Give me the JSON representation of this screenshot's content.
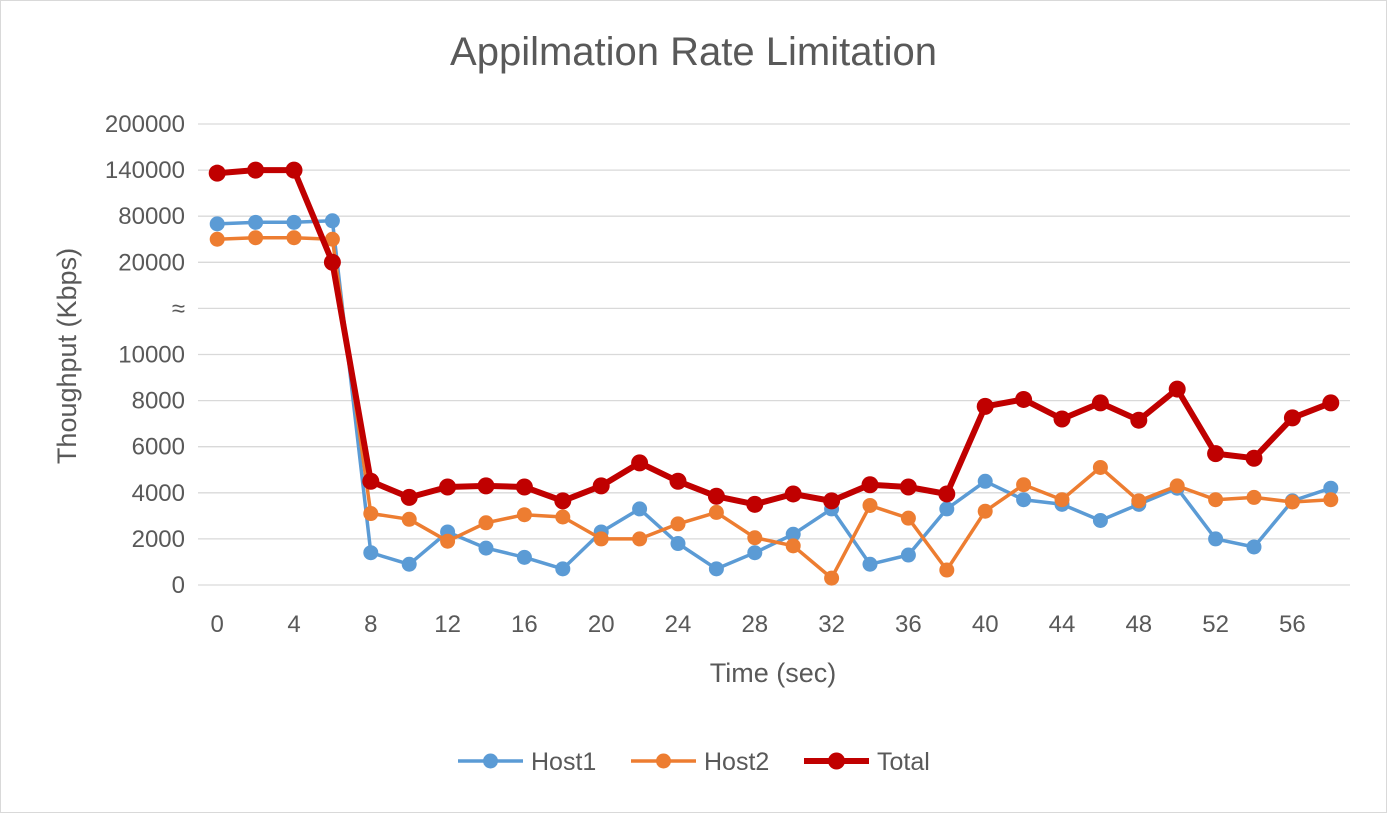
{
  "chart_data": {
    "type": "line",
    "title": "Appilmation Rate Limitation",
    "xlabel": "Time (sec)",
    "ylabel": "Thoughput (Kbps)",
    "x": [
      0,
      2,
      4,
      6,
      8,
      10,
      12,
      14,
      16,
      18,
      20,
      22,
      24,
      26,
      28,
      30,
      32,
      34,
      36,
      38,
      40,
      42,
      44,
      46,
      48,
      50,
      52,
      54,
      56,
      58
    ],
    "x_tick_labels": [
      "0",
      "4",
      "8",
      "12",
      "16",
      "20",
      "24",
      "28",
      "32",
      "36",
      "40",
      "44",
      "48",
      "52",
      "56"
    ],
    "y_tick_labels": [
      "0",
      "2000",
      "4000",
      "6000",
      "8000",
      "10000",
      "≈",
      "20000",
      "80000",
      "140000",
      "200000"
    ],
    "y_axis_break": "≈",
    "y_scale": "broken",
    "grid": "horizontal",
    "legend_position": "bottom",
    "series": [
      {
        "name": "Host1",
        "color": "#5b9bd5",
        "values": [
          70000,
          72000,
          72000,
          74000,
          1400,
          900,
          2300,
          1600,
          1200,
          700,
          2300,
          3300,
          1800,
          700,
          1400,
          2200,
          3300,
          900,
          1300,
          3300,
          4500,
          3700,
          3500,
          2800,
          3500,
          4200,
          2000,
          1650,
          3650,
          4200
        ]
      },
      {
        "name": "Host2",
        "color": "#ed7d31",
        "values": [
          50000,
          52000,
          52000,
          50000,
          3100,
          2850,
          1900,
          2700,
          3050,
          2950,
          2000,
          2000,
          2650,
          3150,
          2050,
          1700,
          300,
          3450,
          2900,
          650,
          3200,
          4350,
          3700,
          5100,
          3650,
          4300,
          3700,
          3800,
          3600,
          3700
        ]
      },
      {
        "name": "Total",
        "color": "#c00000",
        "values": [
          136000,
          140000,
          140000,
          20000,
          4500,
          3800,
          4250,
          4300,
          4250,
          3650,
          4300,
          5300,
          4500,
          3850,
          3500,
          3950,
          3650,
          4350,
          4250,
          3950,
          7750,
          8050,
          7200,
          7900,
          7150,
          8500,
          5700,
          5500,
          7250,
          7900
        ]
      }
    ]
  }
}
